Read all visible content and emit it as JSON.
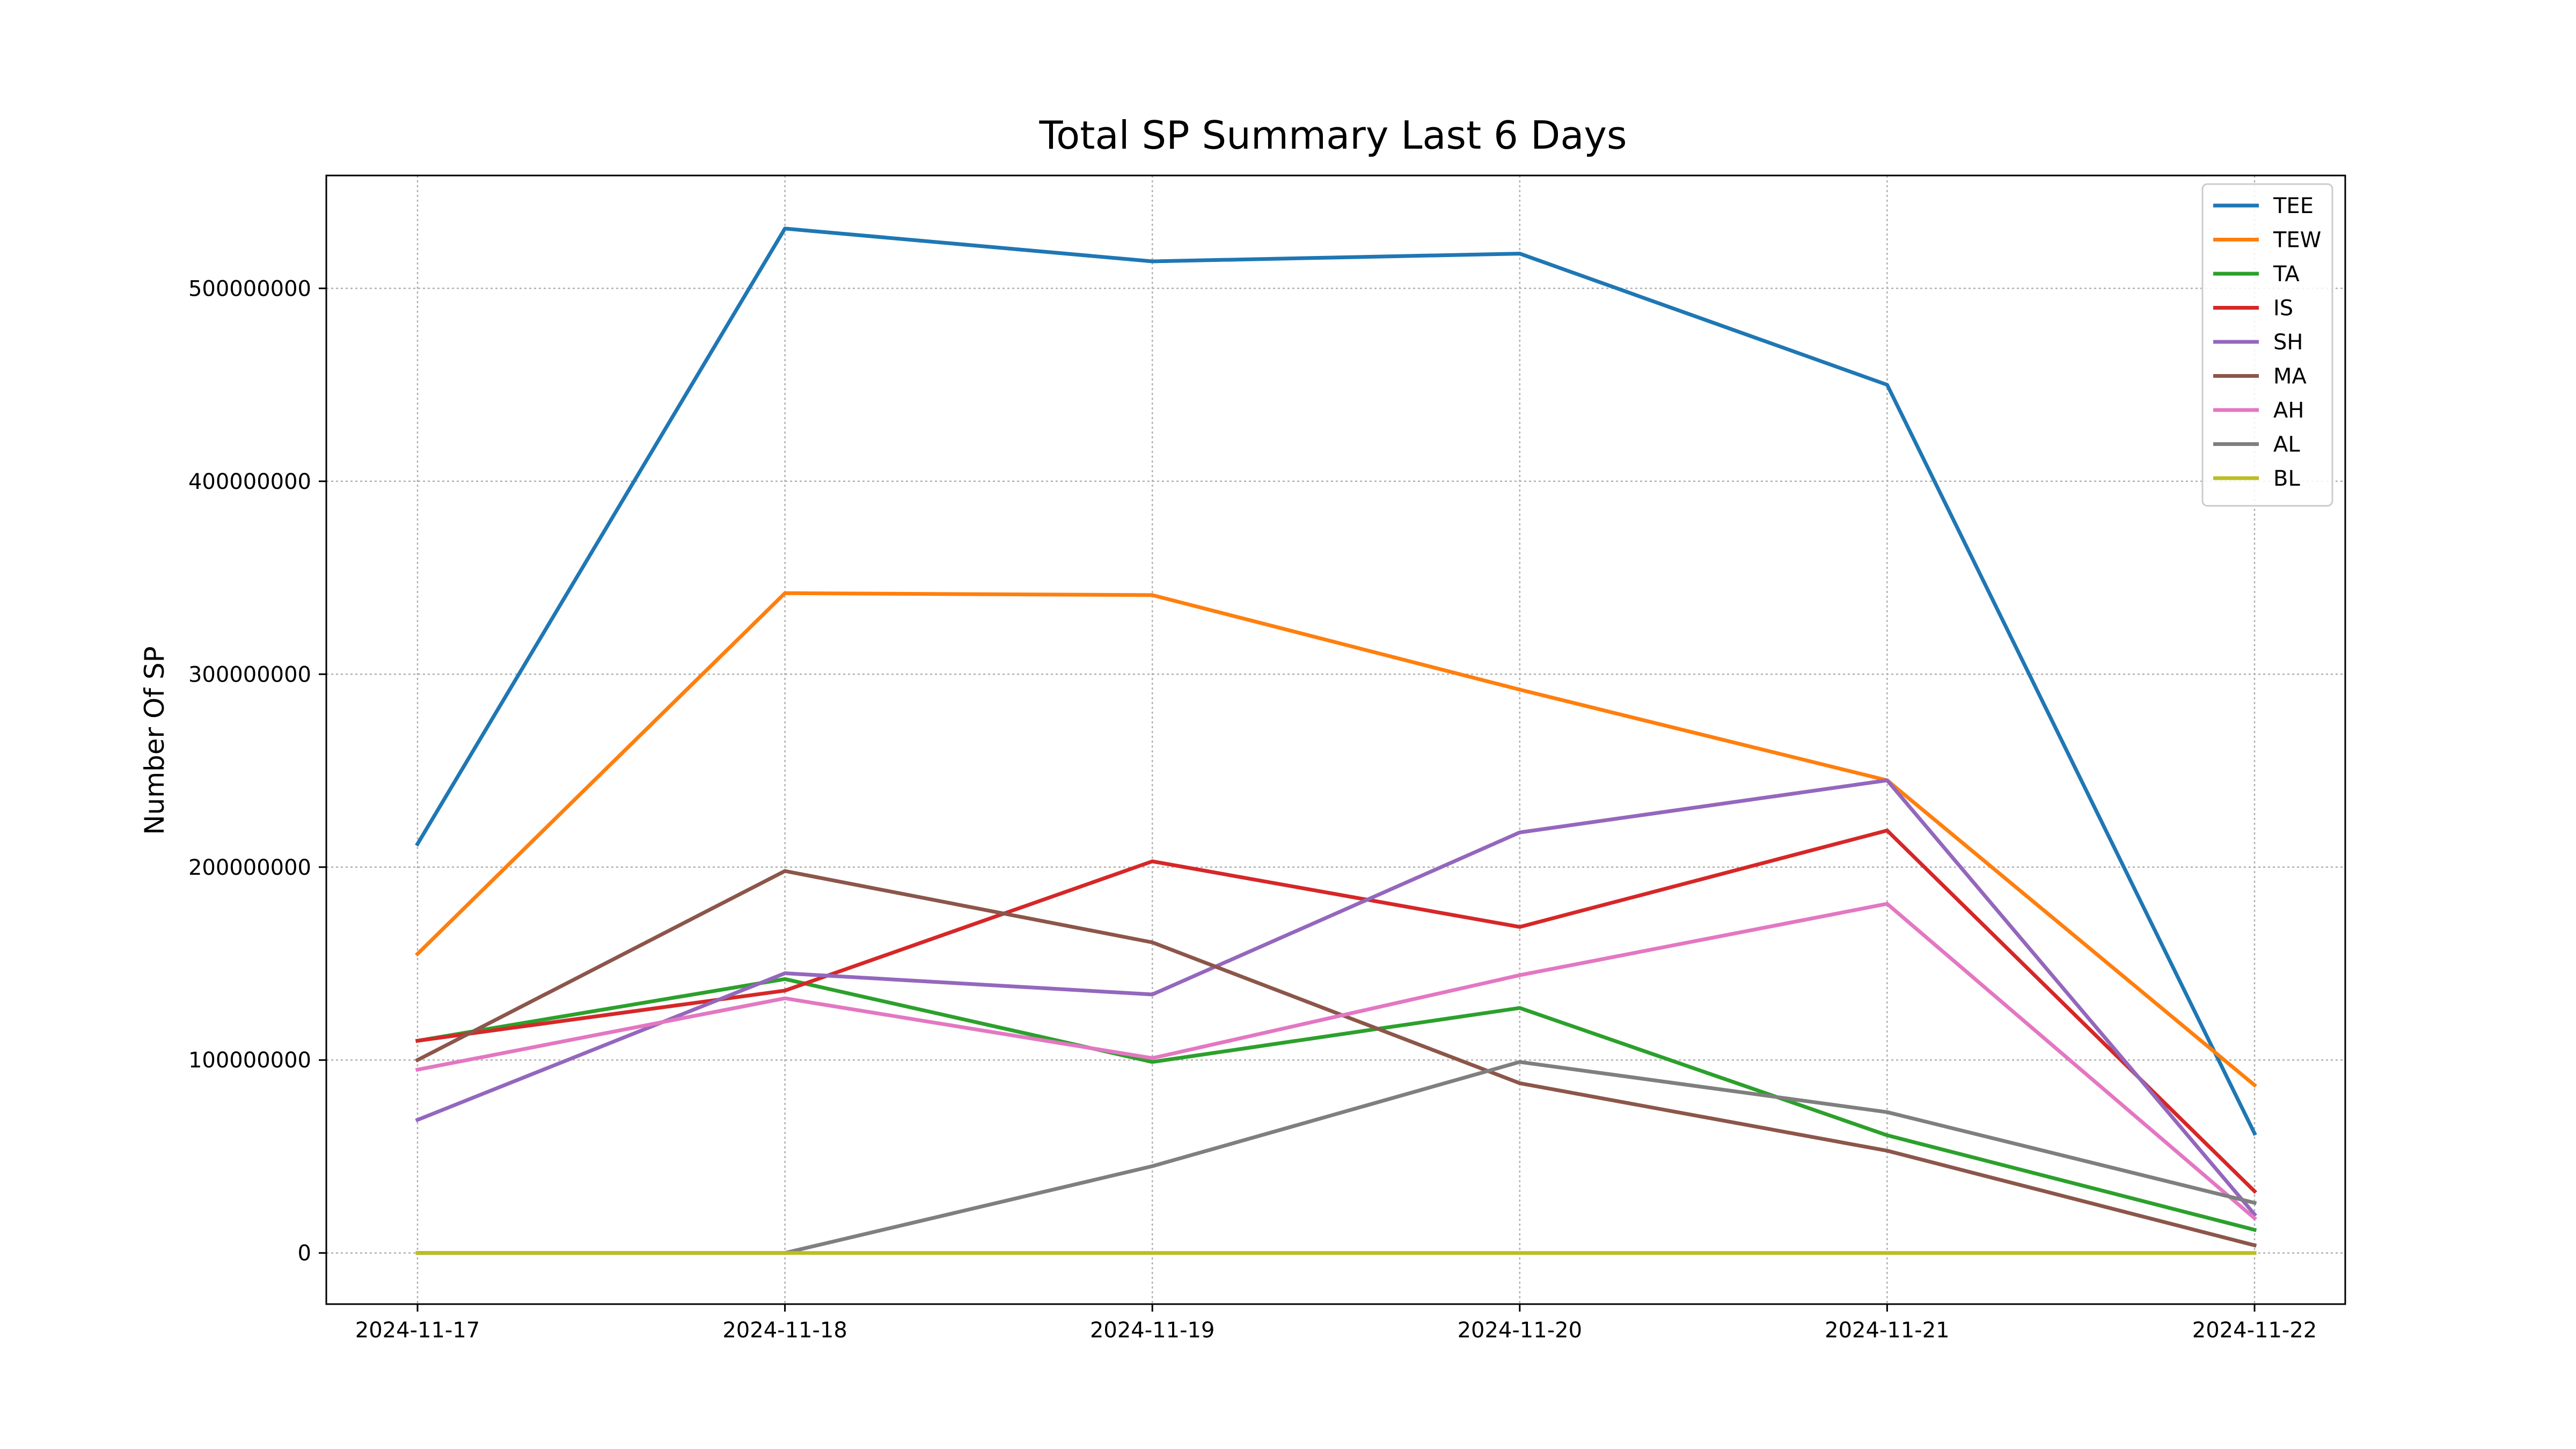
{
  "chart_data": {
    "type": "line",
    "title": "Total SP Summary Last 6 Days",
    "xlabel": "",
    "ylabel": "Number Of SP",
    "x": [
      "2024-11-17",
      "2024-11-18",
      "2024-11-19",
      "2024-11-20",
      "2024-11-21",
      "2024-11-22"
    ],
    "yticks": [
      0,
      100000000,
      200000000,
      300000000,
      400000000,
      500000000
    ],
    "ytick_labels": [
      "0",
      "100000000",
      "200000000",
      "300000000",
      "400000000",
      "500000000"
    ],
    "ylim": [
      -26500000,
      558500000
    ],
    "grid": true,
    "legend_position": "top-right",
    "series": [
      {
        "name": "TEE",
        "color": "#1f77b4",
        "values": [
          212000000,
          531000000,
          514000000,
          518000000,
          450000000,
          62000000
        ]
      },
      {
        "name": "TEW",
        "color": "#ff7f0e",
        "values": [
          155000000,
          342000000,
          341000000,
          292000000,
          245000000,
          87000000
        ]
      },
      {
        "name": "TA",
        "color": "#2ca02c",
        "values": [
          110000000,
          142000000,
          99000000,
          127000000,
          61000000,
          12000000
        ]
      },
      {
        "name": "IS",
        "color": "#d62728",
        "values": [
          110000000,
          136000000,
          203000000,
          169000000,
          219000000,
          32000000
        ]
      },
      {
        "name": "SH",
        "color": "#9467bd",
        "values": [
          69000000,
          145000000,
          134000000,
          218000000,
          245000000,
          20000000
        ]
      },
      {
        "name": "MA",
        "color": "#8c564b",
        "values": [
          100000000,
          198000000,
          161000000,
          88000000,
          53000000,
          4000000
        ]
      },
      {
        "name": "AH",
        "color": "#e377c2",
        "values": [
          95000000,
          132000000,
          101000000,
          144000000,
          181000000,
          18000000
        ]
      },
      {
        "name": "AL",
        "color": "#7f7f7f",
        "values": [
          0,
          0,
          45000000,
          99000000,
          73000000,
          26000000
        ]
      },
      {
        "name": "BL",
        "color": "#bcbd22",
        "values": [
          0,
          0,
          0,
          0,
          0,
          0
        ]
      }
    ]
  }
}
